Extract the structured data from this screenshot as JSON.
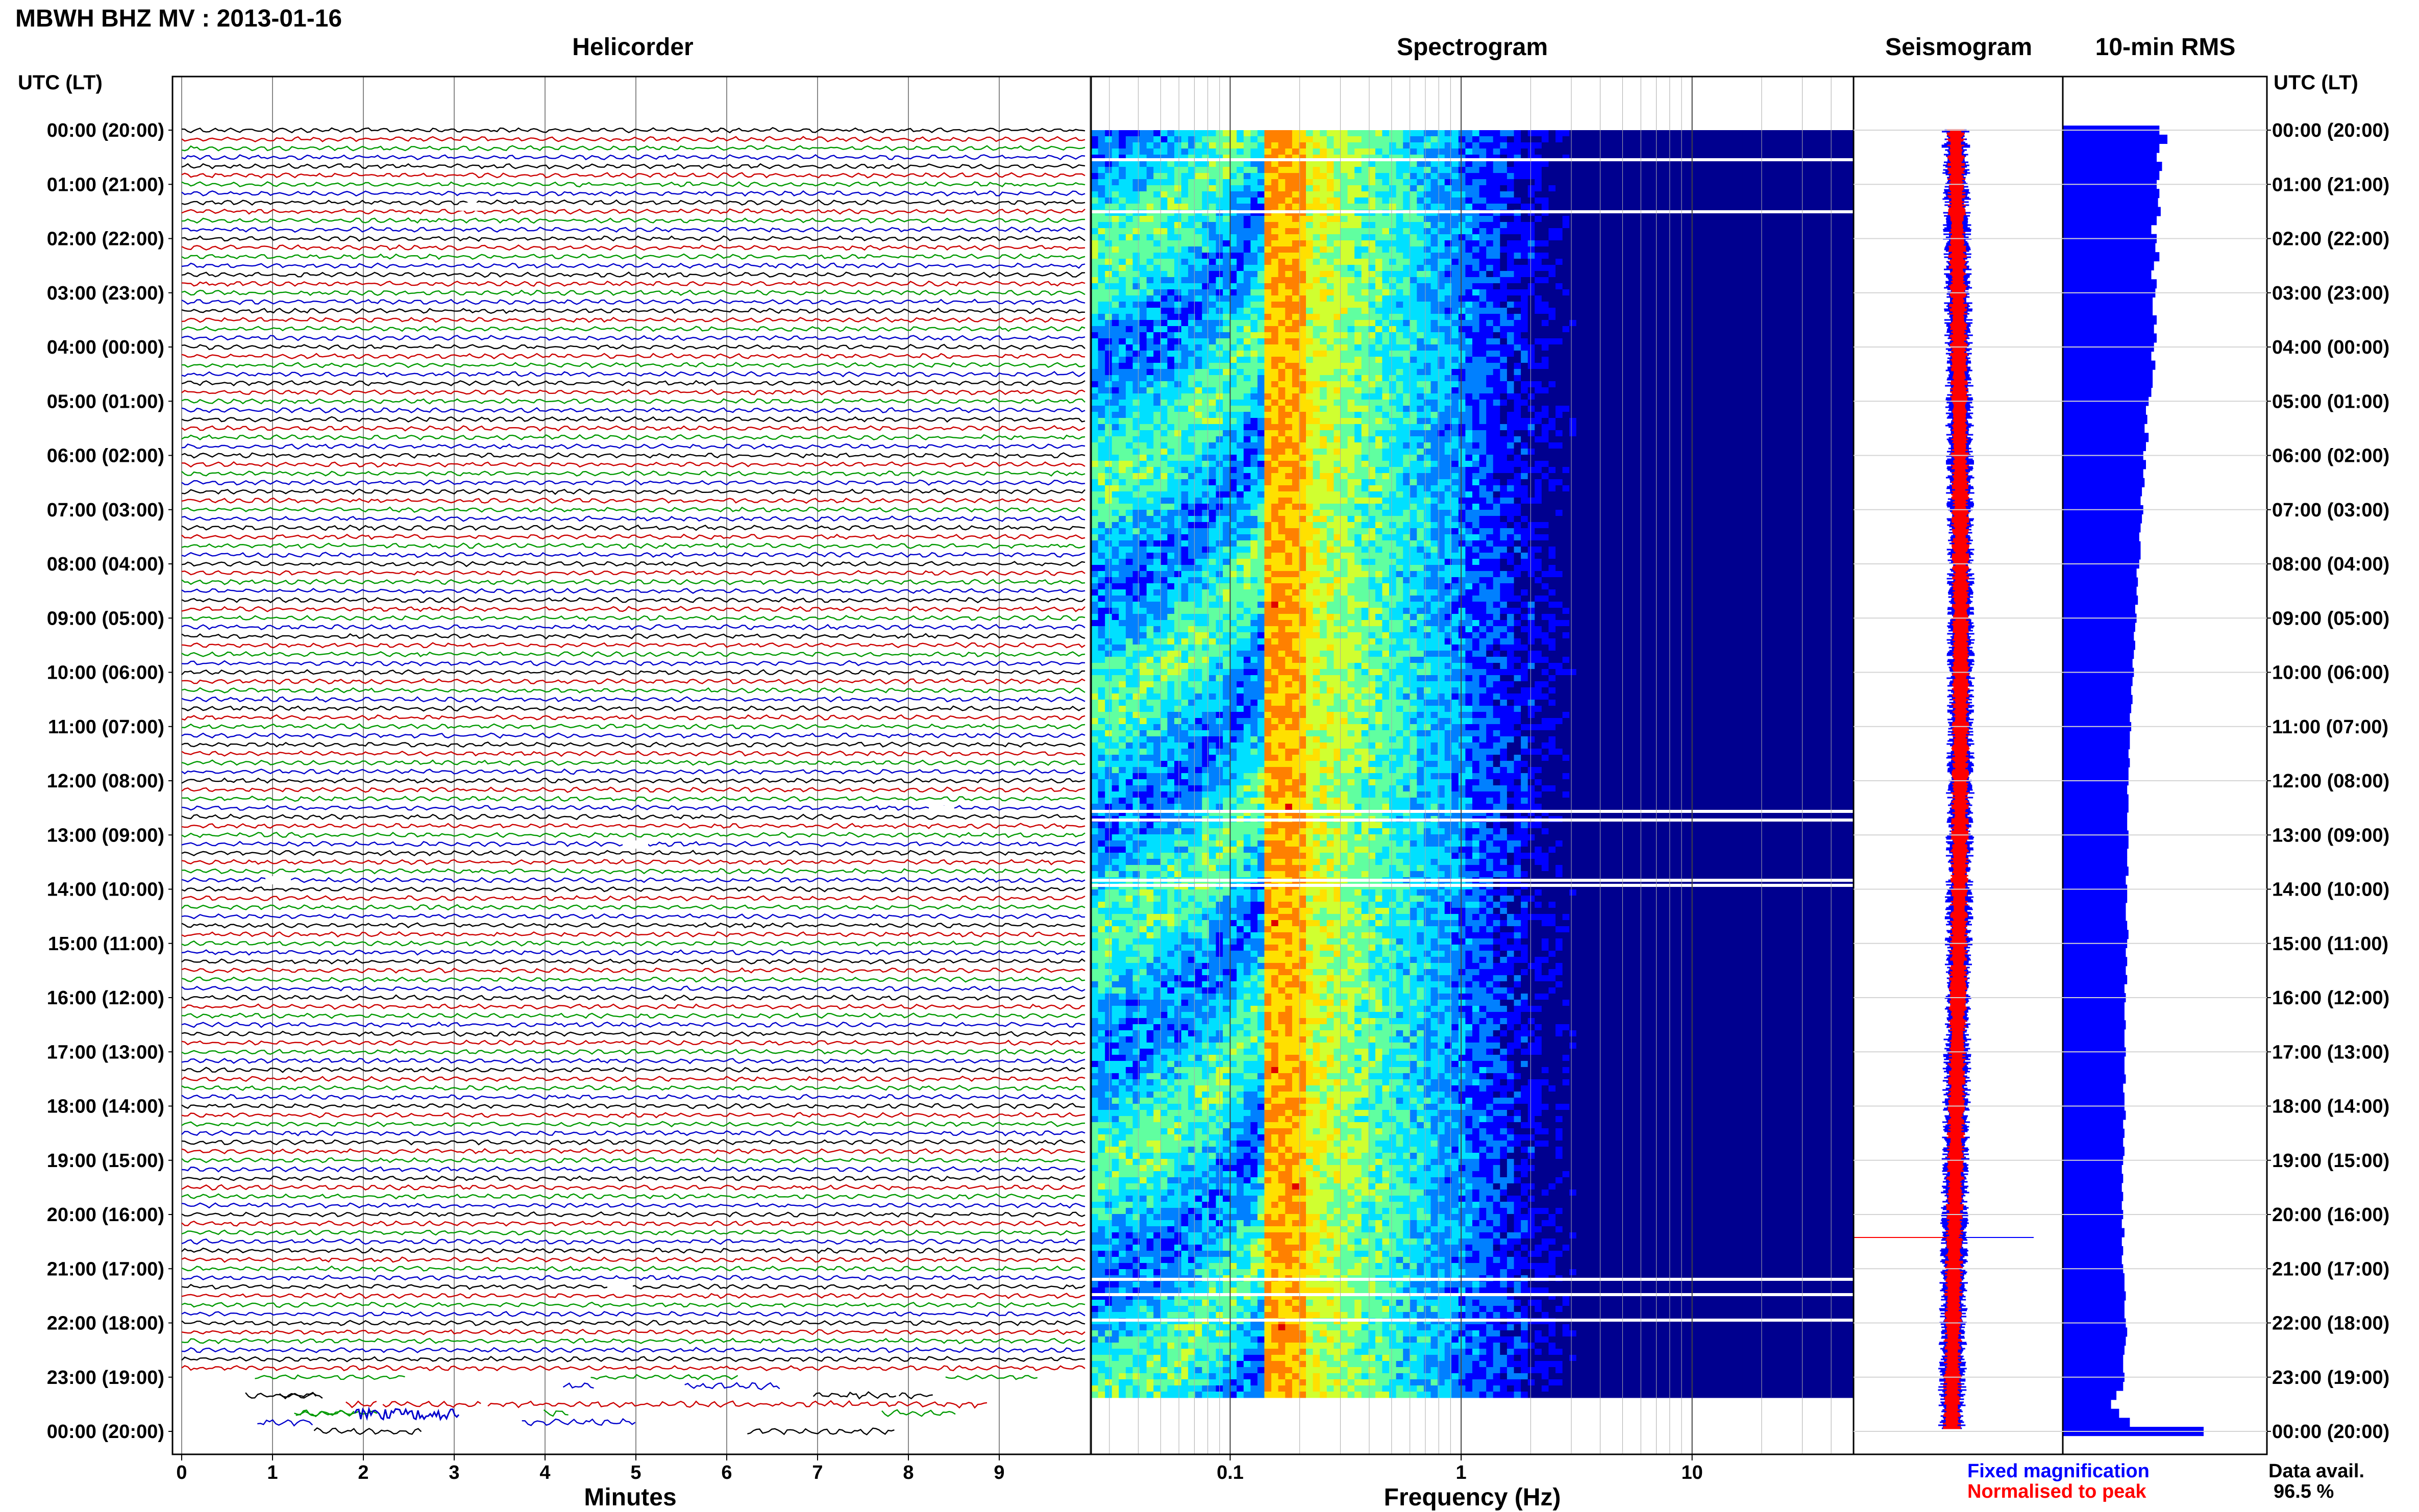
{
  "header": {
    "title": "MBWH BHZ MV : 2013-01-16",
    "utc_label_left": "UTC (LT)",
    "utc_label_right": "UTC (LT)"
  },
  "panels": {
    "helicorder": "Helicorder",
    "spectrogram": "Spectrogram",
    "seismogram": "Seismogram",
    "rms": "10-min RMS"
  },
  "time_labels": [
    "00:00 (20:00)",
    "01:00 (21:00)",
    "02:00 (22:00)",
    "03:00 (23:00)",
    "04:00 (00:00)",
    "05:00 (01:00)",
    "06:00 (02:00)",
    "07:00 (03:00)",
    "08:00 (04:00)",
    "09:00 (05:00)",
    "10:00 (06:00)",
    "11:00 (07:00)",
    "12:00 (08:00)",
    "13:00 (09:00)",
    "14:00 (10:00)",
    "15:00 (11:00)",
    "16:00 (12:00)",
    "17:00 (13:00)",
    "18:00 (14:00)",
    "19:00 (15:00)",
    "20:00 (16:00)",
    "21:00 (17:00)",
    "22:00 (18:00)",
    "23:00 (19:00)",
    "00:00 (20:00)"
  ],
  "chart_data": [
    {
      "type": "line",
      "panel": "helicorder",
      "title": "Helicorder",
      "xlabel": "Minutes",
      "x_ticks": [
        "0",
        "1",
        "2",
        "3",
        "4",
        "5",
        "6",
        "7",
        "8",
        "9"
      ],
      "xlim": [
        0,
        10
      ],
      "rows_per_hour": 6,
      "row_count": 145,
      "trace_colors": [
        "#000000",
        "#cc0000",
        "#009900",
        "#0000cc"
      ]
    },
    {
      "type": "heatmap",
      "panel": "spectrogram",
      "title": "Spectrogram",
      "xlabel": "Frequency (Hz)",
      "x_scale": "log",
      "xlim": [
        0.025,
        50
      ],
      "x_ticks": [
        "0.1",
        "1",
        "10"
      ],
      "peak_frequency_hz": 0.15,
      "colormap": [
        "#00008f",
        "#0000ff",
        "#0080ff",
        "#00e0ff",
        "#60ffa0",
        "#d0ff30",
        "#ffe000",
        "#ff8000",
        "#e00000"
      ]
    },
    {
      "type": "line",
      "panel": "seismogram",
      "title": "Seismogram",
      "series": [
        {
          "name": "Fixed magnification",
          "color": "#0000ff"
        },
        {
          "name": "Normalised to peak",
          "color": "#ff0000"
        }
      ]
    },
    {
      "type": "bar",
      "panel": "rms",
      "title": "10-min RMS",
      "orientation": "horizontal",
      "bar_color": "#0000ff",
      "values": [
        0.72,
        0.78,
        0.72,
        0.7,
        0.74,
        0.72,
        0.7,
        0.72,
        0.71,
        0.73,
        0.7,
        0.66,
        0.7,
        0.69,
        0.72,
        0.68,
        0.66,
        0.7,
        0.69,
        0.67,
        0.67,
        0.7,
        0.68,
        0.7,
        0.68,
        0.66,
        0.69,
        0.67,
        0.67,
        0.66,
        0.64,
        0.62,
        0.63,
        0.61,
        0.64,
        0.62,
        0.6,
        0.62,
        0.6,
        0.61,
        0.59,
        0.58,
        0.6,
        0.59,
        0.58,
        0.57,
        0.58,
        0.58,
        0.57,
        0.55,
        0.56,
        0.55,
        0.56,
        0.54,
        0.55,
        0.54,
        0.53,
        0.54,
        0.53,
        0.52,
        0.53,
        0.52,
        0.51,
        0.52,
        0.51,
        0.5,
        0.51,
        0.5,
        0.5,
        0.49,
        0.5,
        0.49,
        0.49,
        0.48,
        0.49,
        0.49,
        0.48,
        0.48,
        0.49,
        0.49,
        0.48,
        0.48,
        0.49,
        0.47,
        0.48,
        0.48,
        0.47,
        0.47,
        0.48,
        0.49,
        0.48,
        0.47,
        0.48,
        0.47,
        0.48,
        0.46,
        0.47,
        0.46,
        0.46,
        0.47,
        0.46,
        0.46,
        0.47,
        0.46,
        0.46,
        0.47,
        0.45,
        0.46,
        0.46,
        0.47,
        0.45,
        0.46,
        0.45,
        0.46,
        0.45,
        0.44,
        0.45,
        0.44,
        0.45,
        0.44,
        0.45,
        0.44,
        0.46,
        0.44,
        0.45,
        0.44,
        0.45,
        0.46,
        0.46,
        0.47,
        0.46,
        0.46,
        0.47,
        0.48,
        0.47,
        0.46,
        0.45,
        0.45,
        0.46,
        0.45,
        0.4,
        0.36,
        0.42,
        0.5,
        1.05
      ]
    }
  ],
  "footer": {
    "legend_fixed": "Fixed magnification",
    "legend_norm": "Normalised to peak",
    "data_avail_label": "Data avail.",
    "data_avail_value": "96.5 %"
  }
}
